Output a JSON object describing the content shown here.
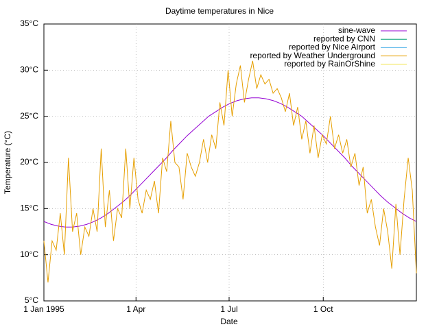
{
  "chart_data": {
    "type": "line",
    "title": "Daytime temperatures in Nice",
    "x_label": "Date",
    "y_label": "Temperature (°C)",
    "xlim": [
      0,
      364
    ],
    "xticks": [
      {
        "value": 0,
        "label": "1 Jan 1995"
      },
      {
        "value": 90,
        "label": "1 Apr"
      },
      {
        "value": 181,
        "label": "1 Jul"
      },
      {
        "value": 273,
        "label": "1 Oct"
      }
    ],
    "ylim": [
      5,
      35
    ],
    "yticks": [
      {
        "value": 5,
        "label": "5°C"
      },
      {
        "value": 10,
        "label": "10°C"
      },
      {
        "value": 15,
        "label": "15°C"
      },
      {
        "value": 20,
        "label": "20°C"
      },
      {
        "value": 25,
        "label": "25°C"
      },
      {
        "value": 30,
        "label": "30°C"
      },
      {
        "value": 35,
        "label": "35°C"
      }
    ],
    "grid": true,
    "legend": "top-right",
    "series": [
      {
        "name": "sine-wave",
        "color": "#9400d3",
        "x": [
          0,
          7,
          14,
          21,
          28,
          35,
          42,
          49,
          56,
          63,
          70,
          77,
          84,
          91,
          98,
          105,
          112,
          119,
          126,
          133,
          140,
          147,
          154,
          161,
          168,
          175,
          182,
          189,
          196,
          203,
          210,
          217,
          224,
          231,
          238,
          245,
          252,
          259,
          266,
          273,
          280,
          287,
          294,
          301,
          308,
          315,
          322,
          329,
          336,
          343,
          350,
          357,
          364
        ],
        "values": [
          13.6,
          13.3,
          13.1,
          13.0,
          13.0,
          13.1,
          13.3,
          13.6,
          14.0,
          14.5,
          15.1,
          15.7,
          16.4,
          17.2,
          18.0,
          18.8,
          19.6,
          20.4,
          21.3,
          22.1,
          22.9,
          23.6,
          24.3,
          25.0,
          25.5,
          26.0,
          26.4,
          26.7,
          26.9,
          27.0,
          27.0,
          26.9,
          26.7,
          26.4,
          26.0,
          25.5,
          25.0,
          24.3,
          23.6,
          22.9,
          22.1,
          21.3,
          20.5,
          19.6,
          18.8,
          18.0,
          17.2,
          16.4,
          15.7,
          15.1,
          14.5,
          14.0,
          13.6
        ]
      },
      {
        "name": "reported by CNN",
        "color": "#009e73",
        "x": [],
        "values": []
      },
      {
        "name": "reported by Nice Airport",
        "color": "#56b4e9",
        "x": [],
        "values": []
      },
      {
        "name": "reported by Weather Underground",
        "color": "#e69f00",
        "x": [
          0,
          4,
          8,
          12,
          16,
          20,
          24,
          28,
          32,
          36,
          40,
          44,
          48,
          52,
          56,
          60,
          64,
          68,
          72,
          76,
          80,
          84,
          88,
          92,
          96,
          100,
          104,
          108,
          112,
          116,
          120,
          124,
          128,
          132,
          136,
          140,
          144,
          148,
          152,
          156,
          160,
          164,
          168,
          172,
          176,
          180,
          184,
          188,
          192,
          196,
          200,
          204,
          208,
          212,
          216,
          220,
          224,
          228,
          232,
          236,
          240,
          244,
          248,
          252,
          256,
          260,
          264,
          268,
          272,
          276,
          280,
          284,
          288,
          292,
          296,
          300,
          304,
          308,
          312,
          316,
          320,
          324,
          328,
          332,
          336,
          340,
          344,
          348,
          352,
          356,
          360,
          364
        ],
        "values": [
          11.5,
          7.0,
          11.5,
          10.5,
          14.5,
          10.0,
          20.5,
          12.5,
          14.5,
          10.0,
          13.0,
          12.0,
          15.0,
          12.5,
          21.5,
          13.0,
          17.0,
          11.5,
          15.0,
          14.0,
          21.5,
          15.0,
          20.5,
          16.0,
          14.5,
          17.0,
          16.0,
          18.0,
          14.5,
          20.5,
          19.0,
          24.5,
          20.0,
          19.5,
          16.0,
          21.0,
          19.5,
          18.5,
          20.0,
          22.5,
          20.0,
          23.0,
          21.5,
          26.5,
          24.0,
          30.0,
          25.0,
          28.5,
          30.5,
          26.5,
          29.0,
          31.0,
          28.0,
          29.5,
          28.5,
          29.0,
          27.5,
          28.0,
          27.0,
          25.5,
          27.5,
          24.0,
          26.0,
          22.5,
          24.5,
          21.0,
          24.0,
          20.5,
          23.0,
          22.0,
          25.0,
          21.5,
          23.0,
          21.0,
          22.5,
          19.5,
          21.0,
          17.5,
          19.5,
          14.5,
          16.0,
          13.0,
          11.0,
          15.0,
          12.5,
          8.5,
          15.5,
          10.0,
          16.0,
          20.5,
          17.0,
          8.0
        ]
      },
      {
        "name": "reported by RainOrShine",
        "color": "#f0e442",
        "x": [],
        "values": []
      }
    ]
  }
}
